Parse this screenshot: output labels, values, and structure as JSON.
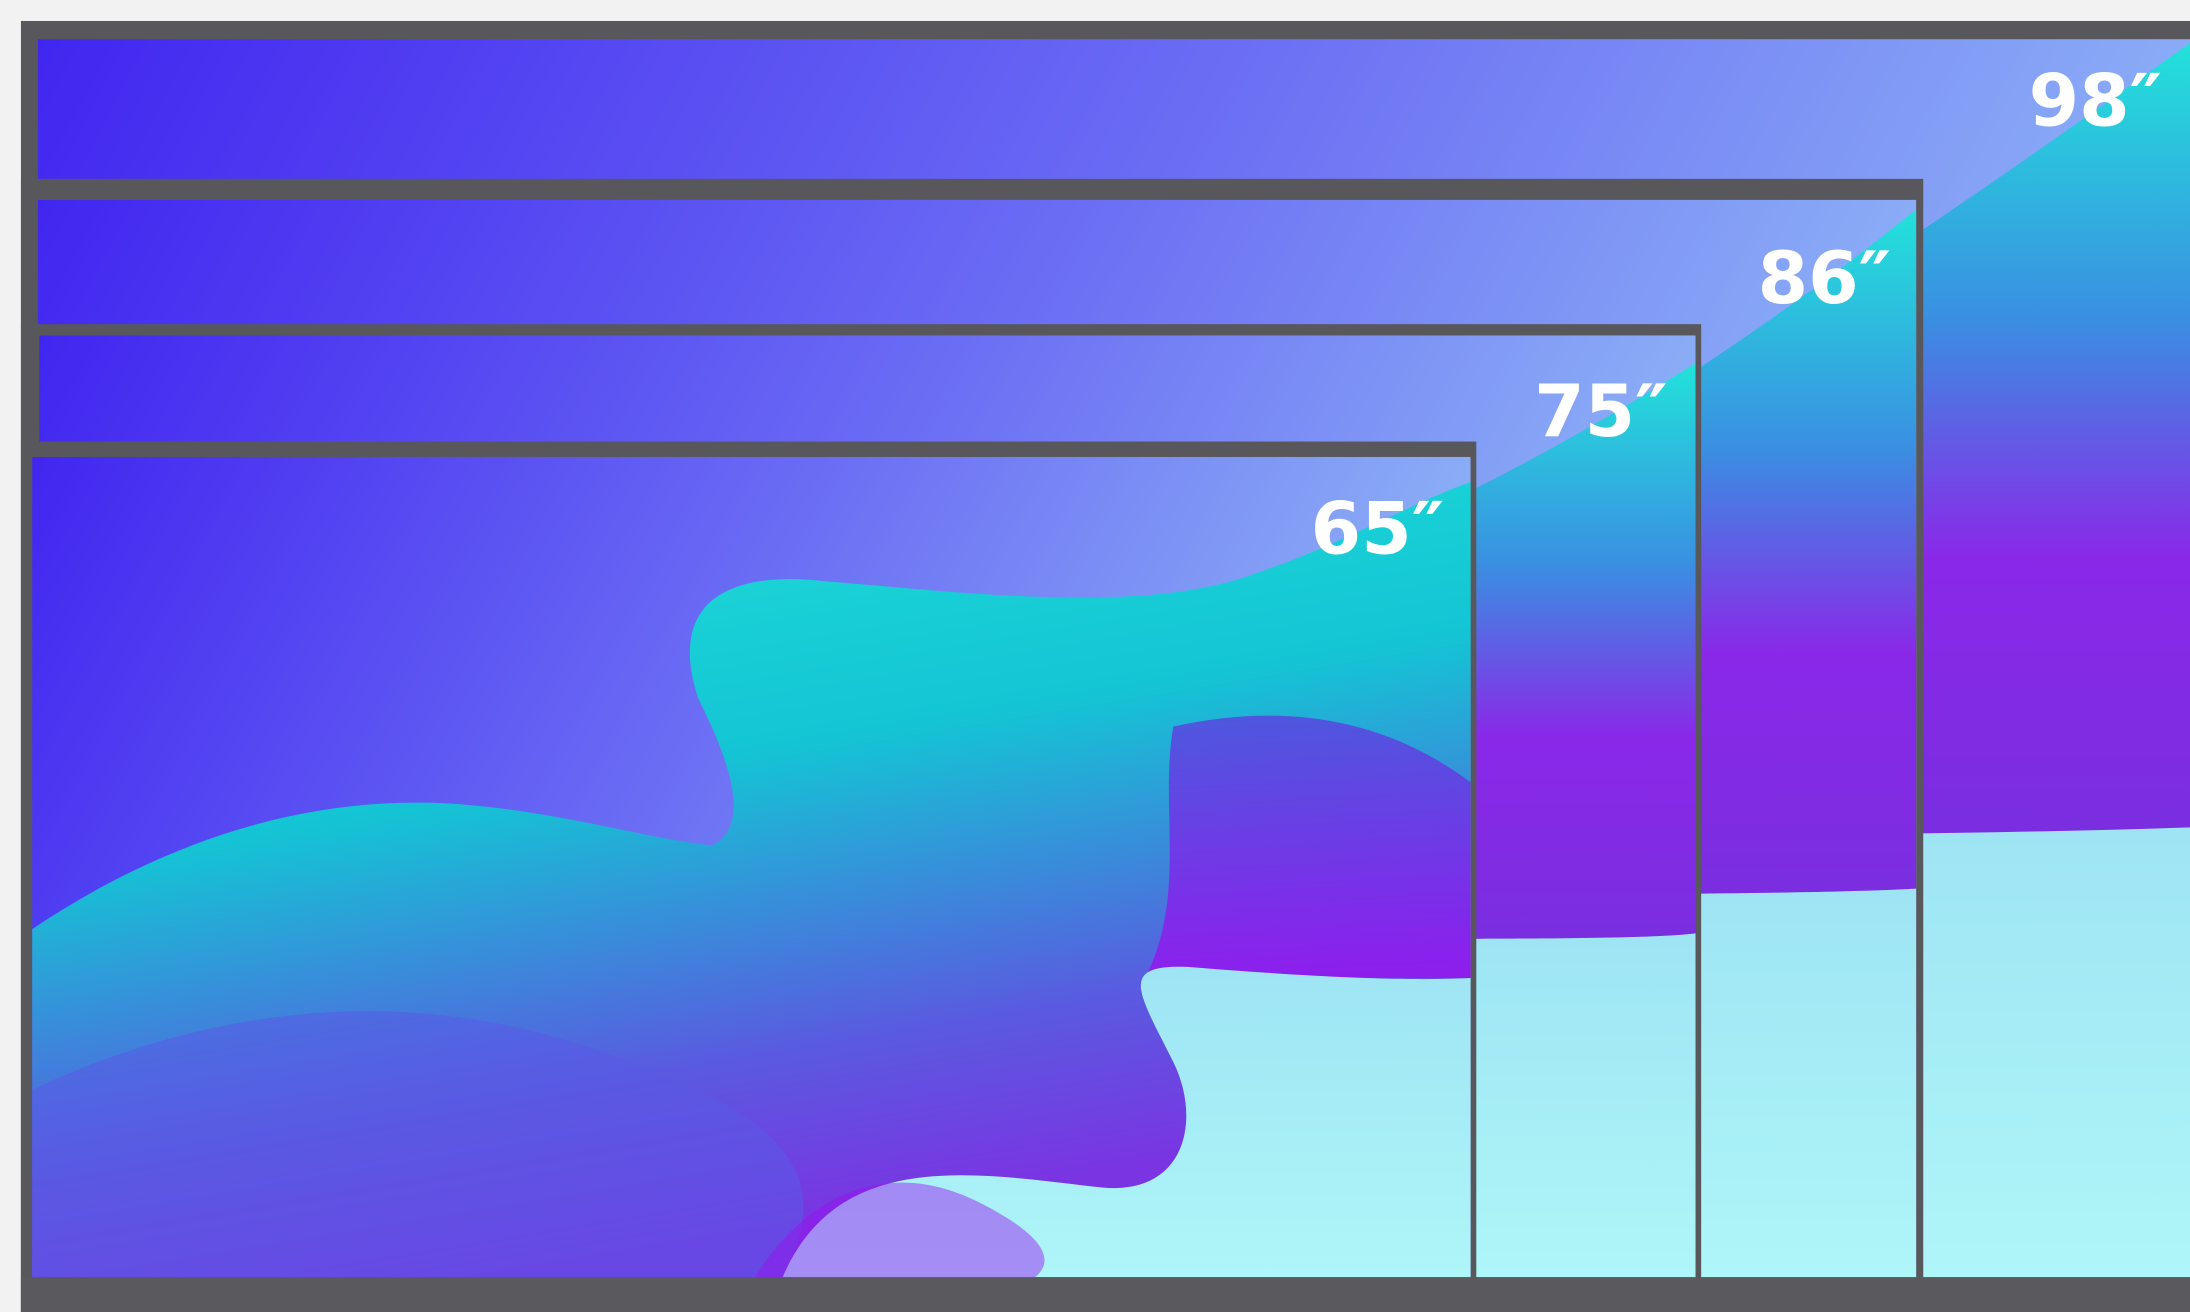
{
  "screens": [
    {
      "label": "98″"
    },
    {
      "label": "86″"
    },
    {
      "label": "75″"
    },
    {
      "label": "65″"
    }
  ]
}
